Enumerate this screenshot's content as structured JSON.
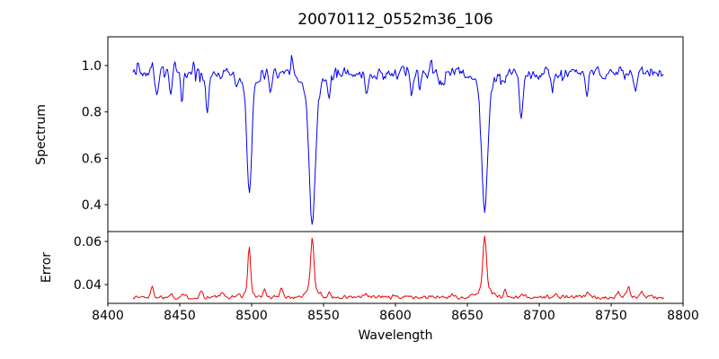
{
  "figure": {
    "title": "20070112_0552m36_106",
    "xlabel": "Wavelength",
    "background_color": "#ffffff",
    "axes_color": "#000000",
    "xlim": [
      8400,
      8800
    ],
    "xticks": [
      8400,
      8450,
      8500,
      8550,
      8600,
      8650,
      8700,
      8750,
      8800
    ],
    "xtick_labels": [
      "8400",
      "8450",
      "8500",
      "8550",
      "8600",
      "8650",
      "8700",
      "8750",
      "8800"
    ],
    "grid": "off",
    "legend": "none"
  },
  "chart_data": [
    {
      "type": "line",
      "name": "spectrum",
      "ylabel": "Spectrum",
      "line_color": "#0000ee",
      "xlim": [
        8400,
        8800
      ],
      "ylim": [
        0.284,
        1.124
      ],
      "yticks": [
        0.4,
        0.6,
        0.8,
        1.0
      ],
      "ytick_labels": [
        "0.4",
        "0.6",
        "0.8",
        "1.0"
      ],
      "x_start": 8417.5,
      "x_end": 8786.5,
      "x_step": 0.75,
      "baseline": 0.968,
      "noise_amplitude": 0.027,
      "noise_seed": 42,
      "absorption_line_centers": [
        8498.3,
        8542.1,
        8662.1
      ],
      "notable_points": [
        {
          "x": 8498.3,
          "y_min": 0.44
        },
        {
          "x": 8542.1,
          "y_min": 0.31
        },
        {
          "x": 8662.1,
          "y_min": 0.38
        }
      ],
      "features": [
        {
          "center": 8421,
          "amp": 0.045,
          "sigma": 0.7
        },
        {
          "center": 8431,
          "amp": 0.045,
          "sigma": 0.6
        },
        {
          "center": 8434,
          "amp": -0.1,
          "sigma": 0.9
        },
        {
          "center": 8444,
          "amp": -0.1,
          "sigma": 0.9
        },
        {
          "center": 8446.5,
          "amp": 0.05,
          "sigma": 0.5
        },
        {
          "center": 8451.5,
          "amp": -0.115,
          "sigma": 0.9
        },
        {
          "center": 8460,
          "amp": 0.04,
          "sigma": 0.6
        },
        {
          "center": 8469,
          "amp": -0.16,
          "sigma": 1.2
        },
        {
          "center": 8490,
          "amp": -0.05,
          "sigma": 0.8
        },
        {
          "center": 8498.3,
          "amp": -0.45,
          "sigma": 1.5
        },
        {
          "center": 8498.3,
          "amp": -0.08,
          "sigma": 5.0
        },
        {
          "center": 8507,
          "amp": 0.05,
          "sigma": 0.5
        },
        {
          "center": 8513,
          "amp": -0.09,
          "sigma": 0.9
        },
        {
          "center": 8528,
          "amp": 0.075,
          "sigma": 0.6
        },
        {
          "center": 8542.1,
          "amp": -0.56,
          "sigma": 2.0
        },
        {
          "center": 8542.1,
          "amp": -0.1,
          "sigma": 6.0
        },
        {
          "center": 8554,
          "amp": -0.1,
          "sigma": 0.9
        },
        {
          "center": 8580,
          "amp": -0.11,
          "sigma": 1.0
        },
        {
          "center": 8611,
          "amp": -0.1,
          "sigma": 0.9
        },
        {
          "center": 8617,
          "amp": -0.075,
          "sigma": 0.8
        },
        {
          "center": 8625,
          "amp": 0.075,
          "sigma": 0.6
        },
        {
          "center": 8633,
          "amp": -0.06,
          "sigma": 0.8
        },
        {
          "center": 8662.1,
          "amp": -0.5,
          "sigma": 1.9
        },
        {
          "center": 8662.1,
          "amp": -0.09,
          "sigma": 5.5
        },
        {
          "center": 8676,
          "amp": -0.06,
          "sigma": 0.8
        },
        {
          "center": 8687.5,
          "amp": -0.18,
          "sigma": 1.3
        },
        {
          "center": 8709,
          "amp": -0.065,
          "sigma": 0.9
        },
        {
          "center": 8733,
          "amp": -0.11,
          "sigma": 1.0
        },
        {
          "center": 8767,
          "amp": -0.085,
          "sigma": 0.9
        }
      ]
    },
    {
      "type": "line",
      "name": "error",
      "ylabel": "Error",
      "line_color": "#ee0000",
      "xlim": [
        8400,
        8800
      ],
      "ylim": [
        0.0313,
        0.0646
      ],
      "yticks": [
        0.04,
        0.06
      ],
      "ytick_labels": [
        "0.04",
        "0.06"
      ],
      "x_start": 8417.5,
      "x_end": 8786.5,
      "x_step": 0.75,
      "baseline": 0.0342,
      "noise_amplitude": 0.0011,
      "noise_seed": 1337,
      "notable_points": [
        {
          "x": 8498.3,
          "y_max": 0.0575
        },
        {
          "x": 8542.1,
          "y_max": 0.062
        },
        {
          "x": 8662.1,
          "y_max": 0.063
        }
      ],
      "features": [
        {
          "center": 8431,
          "amp": 0.0045,
          "sigma": 1.0
        },
        {
          "center": 8444,
          "amp": 0.0018,
          "sigma": 0.9
        },
        {
          "center": 8452,
          "amp": 0.0015,
          "sigma": 0.9
        },
        {
          "center": 8465,
          "amp": 0.0028,
          "sigma": 1.0
        },
        {
          "center": 8479,
          "amp": 0.0018,
          "sigma": 1.0
        },
        {
          "center": 8490,
          "amp": 0.0015,
          "sigma": 0.9
        },
        {
          "center": 8498.3,
          "amp": 0.0205,
          "sigma": 0.9
        },
        {
          "center": 8498.3,
          "amp": 0.003,
          "sigma": 3.0
        },
        {
          "center": 8509,
          "amp": 0.0035,
          "sigma": 1.0
        },
        {
          "center": 8521,
          "amp": 0.004,
          "sigma": 1.1
        },
        {
          "center": 8542.1,
          "amp": 0.0235,
          "sigma": 1.1
        },
        {
          "center": 8542.1,
          "amp": 0.004,
          "sigma": 4.0
        },
        {
          "center": 8554,
          "amp": 0.0018,
          "sigma": 0.9
        },
        {
          "center": 8580,
          "amp": 0.0012,
          "sigma": 0.9
        },
        {
          "center": 8611,
          "amp": 0.0012,
          "sigma": 0.9
        },
        {
          "center": 8640,
          "amp": 0.001,
          "sigma": 1.0
        },
        {
          "center": 8662.1,
          "amp": 0.024,
          "sigma": 1.2
        },
        {
          "center": 8662.1,
          "amp": 0.0048,
          "sigma": 4.0
        },
        {
          "center": 8676,
          "amp": 0.0032,
          "sigma": 1.0
        },
        {
          "center": 8688,
          "amp": 0.0022,
          "sigma": 1.0
        },
        {
          "center": 8712,
          "amp": 0.0012,
          "sigma": 0.9
        },
        {
          "center": 8733,
          "amp": 0.0018,
          "sigma": 1.0
        },
        {
          "center": 8755,
          "amp": 0.0025,
          "sigma": 1.0
        },
        {
          "center": 8762,
          "amp": 0.0042,
          "sigma": 1.1
        },
        {
          "center": 8771,
          "amp": 0.0035,
          "sigma": 1.0
        }
      ]
    }
  ]
}
